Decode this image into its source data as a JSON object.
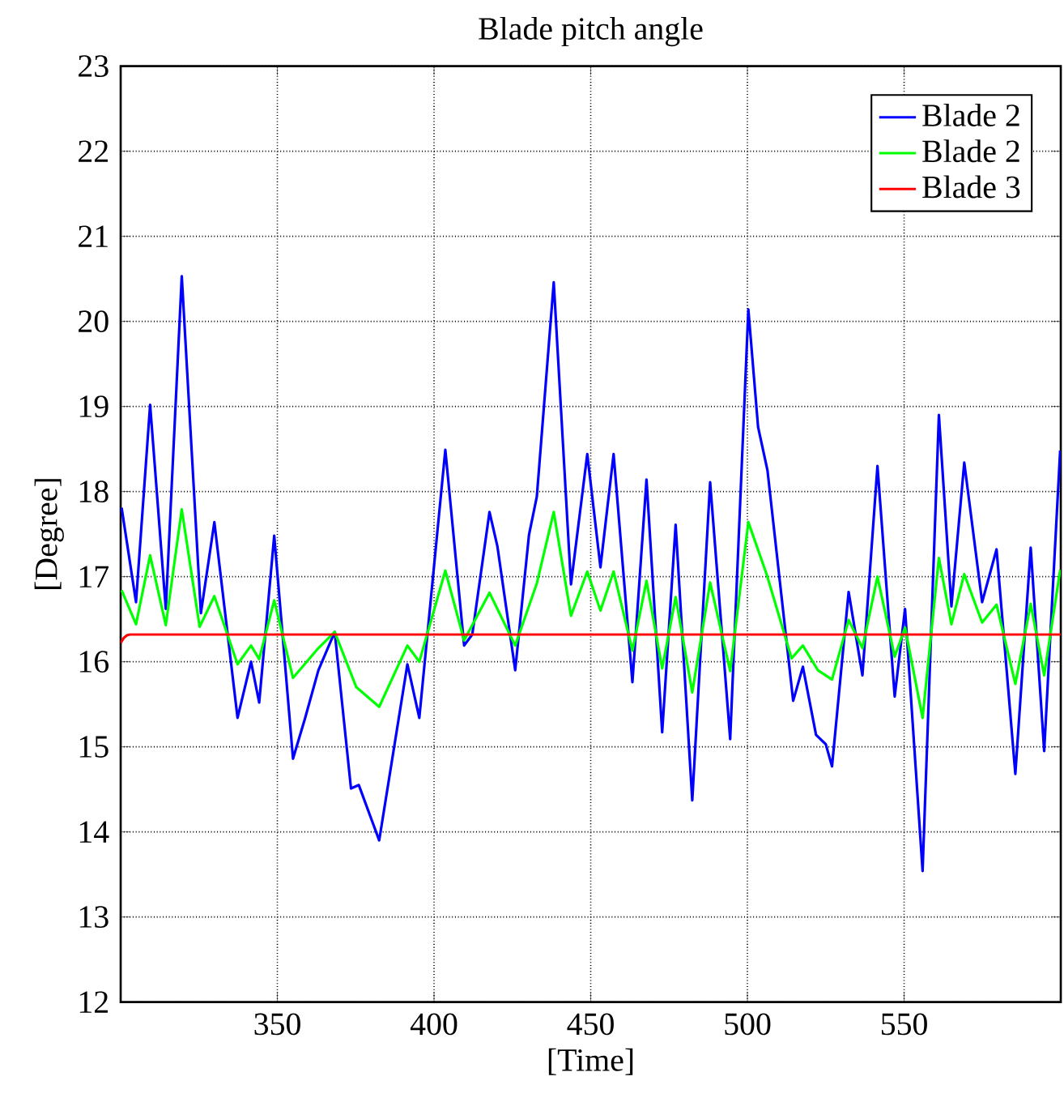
{
  "chart_data": {
    "type": "line",
    "title": "Blade pitch angle",
    "xlabel": "[Time]",
    "ylabel": "[Degree]",
    "xlim": [
      300,
      600
    ],
    "ylim": [
      12,
      23
    ],
    "xticks": [
      350,
      400,
      450,
      500,
      550
    ],
    "yticks": [
      12,
      13,
      14,
      15,
      16,
      17,
      18,
      19,
      20,
      21,
      22,
      23
    ],
    "grid": true,
    "legend": "top right",
    "line_style": "solid",
    "marker": "none",
    "series": [
      {
        "name": "Blade 2",
        "color": "#0000ff",
        "x": [
          300.3,
          304.9,
          309.4,
          314.4,
          319.5,
          325.6,
          329.9,
          337.3,
          341.6,
          344.2,
          349.0,
          355.0,
          358.8,
          363.1,
          368.3,
          373.5,
          376.0,
          382.5,
          391.5,
          395.3,
          403.6,
          409.6,
          412.2,
          417.7,
          420.2,
          425.9,
          430.3,
          432.8,
          438.2,
          443.7,
          448.9,
          453.1,
          457.3,
          463.3,
          467.8,
          472.8,
          477.1,
          482.4,
          488.1,
          494.5,
          500.3,
          503.4,
          506.4,
          514.6,
          517.7,
          521.9,
          525.0,
          527.0,
          532.3,
          536.7,
          541.5,
          547.0,
          550.3,
          555.9,
          561.1,
          565.1,
          569.2,
          574.9,
          579.5,
          585.5,
          590.4,
          594.7,
          599.8
        ],
        "values": [
          17.81,
          16.7,
          19.02,
          16.62,
          20.53,
          16.57,
          17.64,
          15.34,
          16.0,
          15.52,
          17.48,
          14.86,
          15.33,
          15.9,
          16.35,
          14.51,
          14.55,
          13.9,
          15.97,
          15.34,
          18.49,
          16.19,
          16.32,
          17.76,
          17.36,
          15.9,
          17.49,
          17.94,
          20.46,
          16.91,
          18.44,
          17.11,
          18.44,
          15.76,
          18.14,
          15.17,
          17.61,
          14.37,
          18.11,
          15.09,
          20.14,
          18.76,
          18.25,
          15.54,
          15.94,
          15.14,
          15.03,
          14.77,
          16.82,
          15.84,
          18.3,
          15.59,
          16.62,
          13.54,
          18.9,
          16.65,
          18.34,
          16.7,
          17.32,
          14.68,
          17.34,
          14.95,
          18.48
        ]
      },
      {
        "name": "Blade 2",
        "color": "#00ff00",
        "x": [
          300.3,
          304.9,
          309.4,
          314.4,
          319.5,
          325.2,
          329.9,
          337.3,
          341.6,
          344.2,
          349.0,
          355.0,
          363.1,
          368.3,
          375.2,
          382.5,
          391.5,
          395.3,
          403.6,
          409.6,
          417.7,
          425.9,
          432.8,
          438.2,
          443.7,
          448.9,
          453.1,
          457.3,
          463.3,
          467.8,
          472.8,
          477.1,
          482.4,
          488.1,
          494.5,
          500.3,
          506.2,
          514.1,
          517.7,
          522.5,
          527.0,
          532.3,
          536.7,
          541.5,
          547.0,
          550.3,
          555.9,
          561.1,
          565.1,
          569.2,
          574.9,
          579.5,
          585.5,
          590.4,
          594.7,
          599.8
        ],
        "values": [
          16.84,
          16.44,
          17.25,
          16.43,
          17.79,
          16.41,
          16.77,
          15.97,
          16.19,
          16.03,
          16.72,
          15.81,
          16.16,
          16.35,
          15.7,
          15.47,
          16.19,
          16.0,
          17.07,
          16.25,
          16.81,
          16.19,
          16.92,
          17.76,
          16.54,
          17.06,
          16.6,
          17.06,
          16.13,
          16.95,
          15.92,
          16.76,
          15.64,
          16.93,
          15.89,
          17.64,
          17.02,
          16.04,
          16.19,
          15.9,
          15.79,
          16.49,
          16.16,
          17.0,
          16.06,
          16.4,
          15.34,
          17.22,
          16.44,
          17.03,
          16.46,
          16.67,
          15.74,
          16.68,
          15.84,
          17.08
        ]
      },
      {
        "name": "Blade 3",
        "color": "#ff0000",
        "x": [
          300,
          301,
          302,
          303,
          600
        ],
        "values": [
          16.22,
          16.28,
          16.31,
          16.32,
          16.32
        ]
      }
    ]
  }
}
